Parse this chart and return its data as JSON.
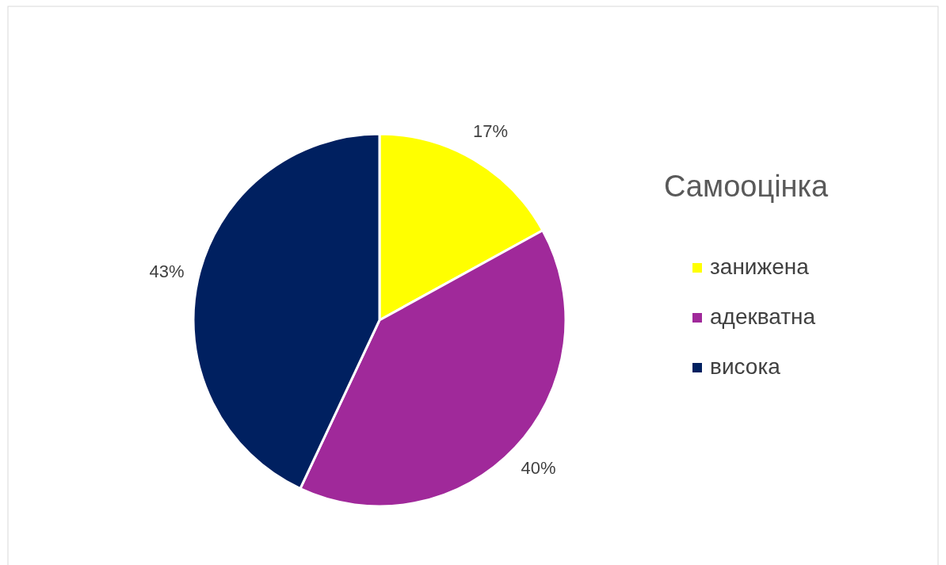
{
  "chart_data": {
    "type": "pie",
    "legend_title": "Самооцінка",
    "categories": [
      "занижена",
      "адекватна",
      "висока"
    ],
    "values": [
      17,
      40,
      43
    ],
    "colors": [
      "#ffff00",
      "#a0299a",
      "#002060"
    ],
    "value_labels": [
      "17%",
      "40%",
      "43%"
    ],
    "legend": "right"
  }
}
